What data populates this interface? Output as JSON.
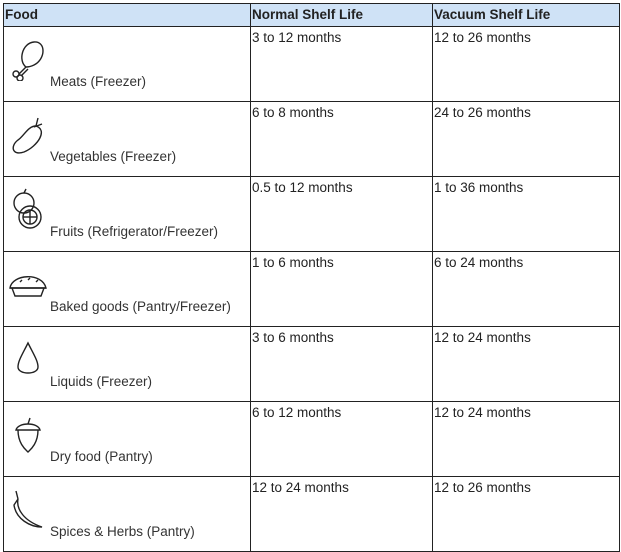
{
  "headers": [
    "Food",
    "Normal Shelf Life",
    "Vacuum Shelf Life"
  ],
  "rows": [
    {
      "icon": "chicken-leg-icon",
      "food": "Meats (Freezer)",
      "normal": "3 to 12 months",
      "vacuum": "12 to 26 months"
    },
    {
      "icon": "eggplant-icon",
      "food": "Vegetables (Freezer)",
      "normal": "6 to 8 months",
      "vacuum": "24 to 26 months"
    },
    {
      "icon": "citrus-icon",
      "food": "Fruits (Refrigerator/Freezer)",
      "normal": "0.5 to 12 months",
      "vacuum": "1 to 36 months"
    },
    {
      "icon": "pie-icon",
      "food": "Baked goods (Pantry/Freezer)",
      "normal": "1 to 6 months",
      "vacuum": "6 to 24 months"
    },
    {
      "icon": "droplet-icon",
      "food": "Liquids (Freezer)",
      "normal": "3 to 6 months",
      "vacuum": "12 to 24 months"
    },
    {
      "icon": "acorn-icon",
      "food": "Dry food (Pantry)",
      "normal": "6 to 12 months",
      "vacuum": "12 to 24 months"
    },
    {
      "icon": "chili-pepper-icon",
      "food": "Spices & Herbs (Pantry)",
      "normal": "12 to 24 months",
      "vacuum": "12 to 26 months"
    }
  ]
}
